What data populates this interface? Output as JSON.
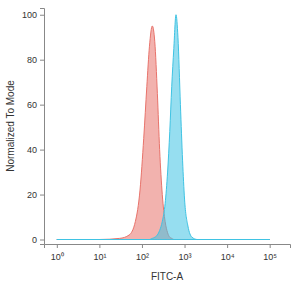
{
  "chart_data": {
    "type": "area",
    "x_label": "FITC-A",
    "y_label": "Normalized To Mode",
    "log": "x",
    "grid": false,
    "x": [
      1,
      10,
      30,
      50,
      70,
      90,
      110,
      130,
      150,
      175,
      200,
      230,
      260,
      300,
      350,
      400,
      450,
      500,
      560,
      630,
      700,
      800,
      900,
      1000,
      1200,
      1500,
      2000,
      10000,
      100000
    ],
    "series": [
      {
        "color": "#e8736b",
        "values": [
          0,
          0,
          0.5,
          2,
          8,
          22,
          45,
          68,
          86,
          95,
          88,
          65,
          40,
          20,
          8,
          3,
          1,
          0.5,
          0,
          0,
          0,
          0,
          0,
          0,
          0,
          0,
          0,
          0,
          0
        ]
      },
      {
        "color": "#3fc3e3",
        "values": [
          0,
          0,
          0,
          0,
          0,
          0,
          0,
          0,
          0,
          0.5,
          1,
          2,
          4,
          8,
          16,
          30,
          48,
          68,
          85,
          100,
          90,
          60,
          35,
          18,
          6,
          1,
          0,
          0,
          0
        ]
      }
    ],
    "xlim": [
      0.5,
      300000
    ],
    "xticks": [
      {
        "value": 1,
        "label": "10⁰"
      },
      {
        "value": 10,
        "label": "10¹"
      },
      {
        "value": 100,
        "label": "10²"
      },
      {
        "value": 1000,
        "label": "10³"
      },
      {
        "value": 10000,
        "label": "10⁴"
      },
      {
        "value": 100000,
        "label": "10⁵"
      }
    ],
    "ylim": [
      -2,
      103
    ],
    "yticks": [
      0,
      20,
      40,
      60,
      80,
      100
    ]
  }
}
